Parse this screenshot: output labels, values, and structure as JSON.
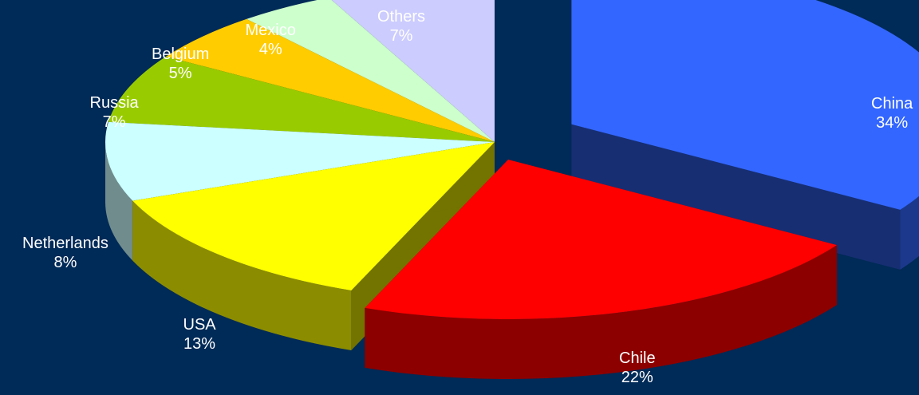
{
  "chart_data": {
    "type": "pie",
    "title": "",
    "style": "3d-exploded",
    "background_color": "#002a57",
    "label_color": "#ffffff",
    "slices": [
      {
        "name": "China",
        "value": 34,
        "label": "34%",
        "color": "#3366ff"
      },
      {
        "name": "Chile",
        "value": 22,
        "label": "22%",
        "color": "#ff0000"
      },
      {
        "name": "USA",
        "value": 13,
        "label": "13%",
        "color": "#ffff00"
      },
      {
        "name": "Netherlands",
        "value": 8,
        "label": "8%",
        "color": "#ccffff"
      },
      {
        "name": "Russia",
        "value": 7,
        "label": "7%",
        "color": "#99cc00"
      },
      {
        "name": "Belgium",
        "value": 5,
        "label": "5%",
        "color": "#ffcc00"
      },
      {
        "name": "Mexico",
        "value": 4,
        "label": "4%",
        "color": "#ccffcc"
      },
      {
        "name": "Others",
        "value": 7,
        "label": "7%",
        "color": "#ccccff"
      }
    ]
  }
}
